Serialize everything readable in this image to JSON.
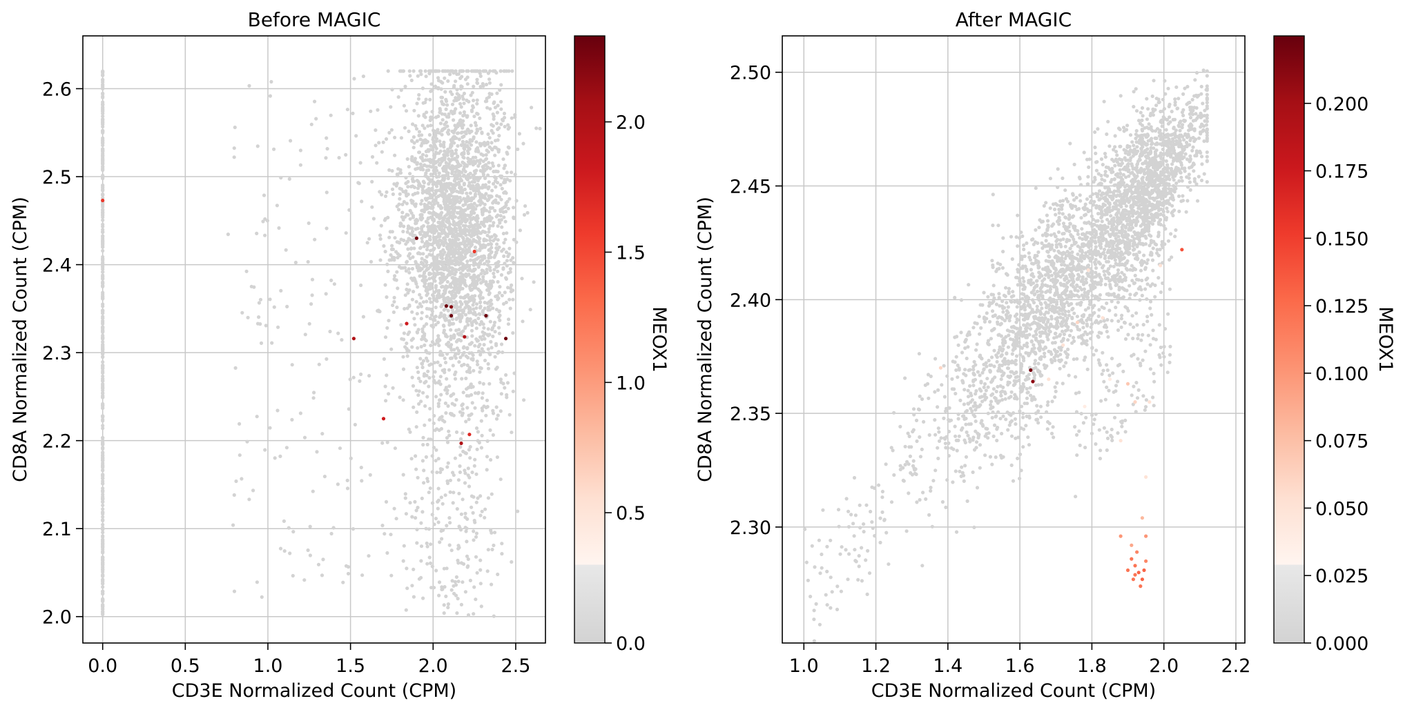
{
  "colors": {
    "low": "#d3d3d3",
    "cmap": [
      "#fff5f0",
      "#fee0d2",
      "#fcbba1",
      "#fc9272",
      "#fb6a4a",
      "#ef3b2c",
      "#cb181d",
      "#a50f15",
      "#67000d"
    ],
    "grid": "#c8c8c8",
    "axis": "#000000"
  },
  "chart_data": [
    {
      "type": "scatter",
      "title": "Before MAGIC",
      "xlabel": "CD3E Normalized Count (CPM)",
      "ylabel": "CD8A Normalized Count  (CPM)",
      "xlim": [
        -0.12,
        2.68
      ],
      "ylim": [
        1.97,
        2.66
      ],
      "xticks": [
        0.0,
        0.5,
        1.0,
        1.5,
        2.0,
        2.5
      ],
      "yticks": [
        2.0,
        2.1,
        2.2,
        2.3,
        2.4,
        2.5,
        2.6
      ],
      "xtick_labels": [
        "0.0",
        "0.5",
        "1.0",
        "1.5",
        "2.0",
        "2.5"
      ],
      "ytick_labels": [
        "2.0",
        "2.1",
        "2.2",
        "2.3",
        "2.4",
        "2.5",
        "2.6"
      ],
      "grid": true,
      "colorbar": {
        "label": "MEOX1",
        "range": [
          0.0,
          2.33
        ],
        "ticks": [
          0.0,
          0.5,
          1.0,
          1.5,
          2.0
        ],
        "tick_labels": [
          "0.0",
          "0.5",
          "1.0",
          "1.5",
          "2.0"
        ],
        "gray_threshold": 0.3
      },
      "cluster": {
        "x_center": 2.13,
        "y_center": 2.45,
        "x_spread": 0.18,
        "y_spread": 0.09,
        "y_range": [
          2.0,
          2.62
        ],
        "n_points": 3200
      },
      "zero_column": {
        "x": 0.0,
        "y_range": [
          2.0,
          2.62
        ],
        "n_points": 420
      },
      "highlighted_points": [
        {
          "x": 1.9,
          "y": 2.43,
          "value": 2.3
        },
        {
          "x": 2.08,
          "y": 2.353,
          "value": 2.3
        },
        {
          "x": 2.11,
          "y": 2.352,
          "value": 2.2
        },
        {
          "x": 2.11,
          "y": 2.342,
          "value": 2.3
        },
        {
          "x": 1.52,
          "y": 2.316,
          "value": 2.0
        },
        {
          "x": 1.84,
          "y": 2.333,
          "value": 1.8
        },
        {
          "x": 2.19,
          "y": 2.318,
          "value": 2.0
        },
        {
          "x": 2.32,
          "y": 2.342,
          "value": 2.3
        },
        {
          "x": 2.44,
          "y": 2.316,
          "value": 2.3
        },
        {
          "x": 2.25,
          "y": 2.415,
          "value": 1.6
        },
        {
          "x": 1.7,
          "y": 2.225,
          "value": 1.8
        },
        {
          "x": 2.22,
          "y": 2.207,
          "value": 1.7
        },
        {
          "x": 2.17,
          "y": 2.197,
          "value": 2.0
        },
        {
          "x": 0.0,
          "y": 2.473,
          "value": 1.6
        }
      ]
    },
    {
      "type": "scatter",
      "title": "After MAGIC",
      "xlabel": "CD3E Normalized Count (CPM)",
      "ylabel": "CD8A Normalized Count  (CPM)",
      "xlim": [
        0.94,
        2.225
      ],
      "ylim": [
        2.249,
        2.516
      ],
      "xticks": [
        1.0,
        1.2,
        1.4,
        1.6,
        1.8,
        2.0,
        2.2
      ],
      "yticks": [
        2.3,
        2.35,
        2.4,
        2.45,
        2.5
      ],
      "xtick_labels": [
        "1.0",
        "1.2",
        "1.4",
        "1.6",
        "1.8",
        "2.0",
        "2.2"
      ],
      "ytick_labels": [
        "2.30",
        "2.35",
        "2.40",
        "2.45",
        "2.50"
      ],
      "grid": true,
      "colorbar": {
        "label": "MEOX1",
        "range": [
          0.0,
          0.225
        ],
        "ticks": [
          0.0,
          0.025,
          0.05,
          0.075,
          0.1,
          0.125,
          0.15,
          0.175,
          0.2
        ],
        "tick_labels": [
          "0.000",
          "0.025",
          "0.050",
          "0.075",
          "0.100",
          "0.125",
          "0.150",
          "0.175",
          "0.200"
        ],
        "gray_threshold": 0.029
      },
      "trend": {
        "x_range": [
          1.0,
          2.12
        ],
        "y_at_min": 2.275,
        "y_at_max": 2.48,
        "n_points": 3600
      },
      "highlighted_points": [
        {
          "x": 1.63,
          "y": 2.369,
          "value": 0.22
        },
        {
          "x": 1.636,
          "y": 2.364,
          "value": 0.21
        },
        {
          "x": 2.05,
          "y": 2.422,
          "value": 0.14
        },
        {
          "x": 1.92,
          "y": 2.283,
          "value": 0.12
        },
        {
          "x": 1.93,
          "y": 2.28,
          "value": 0.13
        },
        {
          "x": 1.91,
          "y": 2.286,
          "value": 0.12
        },
        {
          "x": 1.94,
          "y": 2.277,
          "value": 0.13
        },
        {
          "x": 1.92,
          "y": 2.279,
          "value": 0.12
        },
        {
          "x": 1.95,
          "y": 2.285,
          "value": 0.11
        },
        {
          "x": 1.925,
          "y": 2.289,
          "value": 0.11
        },
        {
          "x": 1.9,
          "y": 2.281,
          "value": 0.12
        },
        {
          "x": 1.935,
          "y": 2.274,
          "value": 0.12
        },
        {
          "x": 1.945,
          "y": 2.281,
          "value": 0.13
        },
        {
          "x": 1.915,
          "y": 2.277,
          "value": 0.12
        },
        {
          "x": 1.88,
          "y": 2.296,
          "value": 0.1
        },
        {
          "x": 1.95,
          "y": 2.296,
          "value": 0.1
        },
        {
          "x": 1.91,
          "y": 2.292,
          "value": 0.09
        },
        {
          "x": 1.94,
          "y": 2.304,
          "value": 0.08
        },
        {
          "x": 1.9,
          "y": 2.363,
          "value": 0.07
        },
        {
          "x": 1.92,
          "y": 2.355,
          "value": 0.06
        },
        {
          "x": 1.88,
          "y": 2.338,
          "value": 0.05
        },
        {
          "x": 1.83,
          "y": 2.392,
          "value": 0.05
        },
        {
          "x": 1.79,
          "y": 2.413,
          "value": 0.05
        },
        {
          "x": 1.76,
          "y": 2.39,
          "value": 0.06
        },
        {
          "x": 1.96,
          "y": 2.355,
          "value": 0.05
        },
        {
          "x": 1.99,
          "y": 2.415,
          "value": 0.05
        },
        {
          "x": 1.85,
          "y": 2.365,
          "value": 0.04
        },
        {
          "x": 1.72,
          "y": 2.38,
          "value": 0.05
        },
        {
          "x": 1.38,
          "y": 2.37,
          "value": 0.06
        },
        {
          "x": 1.68,
          "y": 2.365,
          "value": 0.05
        },
        {
          "x": 1.95,
          "y": 2.322,
          "value": 0.05
        },
        {
          "x": 1.78,
          "y": 2.353,
          "value": 0.04
        }
      ]
    }
  ]
}
